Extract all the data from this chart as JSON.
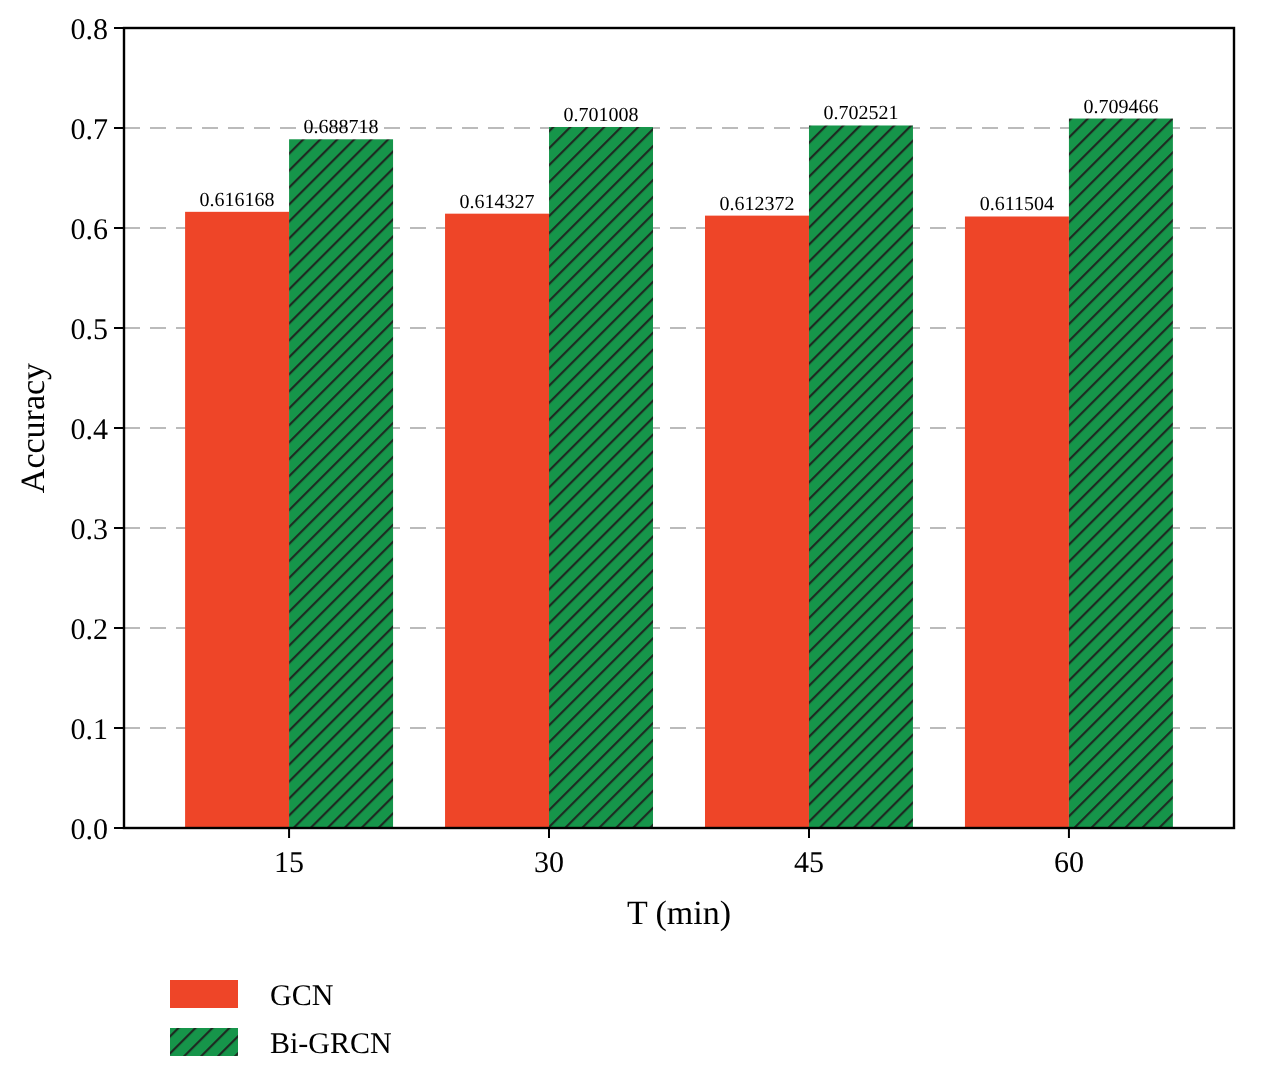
{
  "chart_data": {
    "type": "bar",
    "xlabel": "T (min)",
    "ylabel": "Accuracy",
    "categories": [
      "15",
      "30",
      "45",
      "60"
    ],
    "series": [
      {
        "name": "GCN",
        "color": "#ee4528",
        "values": [
          0.616168,
          0.614327,
          0.612372,
          0.611504
        ]
      },
      {
        "name": "Bi-GRCN",
        "color": "#16954a",
        "values": [
          0.688718,
          0.701008,
          0.702521,
          0.709466
        ]
      }
    ],
    "ylim": [
      0,
      0.8
    ],
    "yticks": [
      {
        "value": 0,
        "label": "0.0"
      },
      {
        "value": 0.1,
        "label": "0.1"
      },
      {
        "value": 0.2,
        "label": "0.2"
      },
      {
        "value": 0.3,
        "label": "0.3"
      },
      {
        "value": 0.4,
        "label": "0.4"
      },
      {
        "value": 0.5,
        "label": "0.5"
      },
      {
        "value": 0.6,
        "label": "0.6"
      },
      {
        "value": 0.7,
        "label": "0.7"
      },
      {
        "value": 0.8,
        "label": "0.8"
      }
    ],
    "grid": "y",
    "data_labels": true,
    "legend": "bottom left"
  }
}
